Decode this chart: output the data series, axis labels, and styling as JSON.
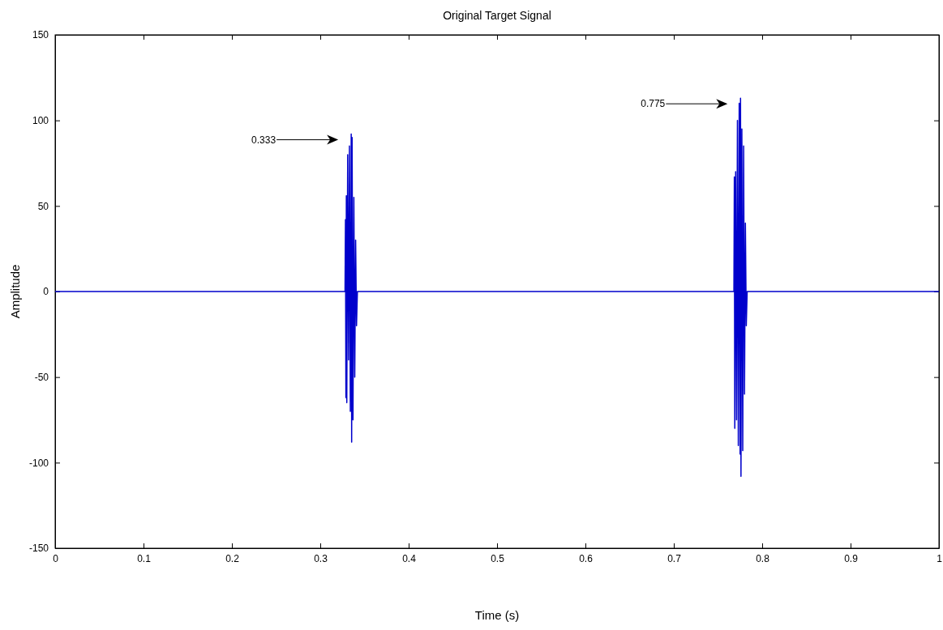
{
  "chart_data": {
    "type": "line",
    "title": "Original Target Signal",
    "xlabel": "Time (s)",
    "ylabel": "Amplitude",
    "xlim": [
      0,
      1
    ],
    "xticks": [
      0,
      0.1,
      0.2,
      0.3,
      0.4,
      0.5,
      0.6,
      0.7,
      0.8,
      0.9,
      1
    ],
    "ylim": [
      -150,
      150
    ],
    "yticks": [
      -150,
      -100,
      -50,
      0,
      50,
      100,
      150
    ],
    "grid": false,
    "marker": "none",
    "line_style": "solid",
    "annotations": [
      "0.333",
      "0.775"
    ],
    "series": [
      {
        "color": "#0000cc",
        "x": [
          0,
          0.328,
          0.3285,
          0.329,
          0.3295,
          0.33,
          0.331,
          0.332,
          0.333,
          0.334,
          0.335,
          0.3355,
          0.336,
          0.337,
          0.338,
          0.339,
          0.34,
          0.341,
          0.342,
          0.768,
          0.7685,
          0.769,
          0.77,
          0.771,
          0.772,
          0.773,
          0.774,
          0.775,
          0.7755,
          0.776,
          0.777,
          0.778,
          0.779,
          0.78,
          0.781,
          0.782,
          0.783,
          1
        ],
        "values": [
          0,
          0,
          42,
          -62,
          56,
          -65,
          80,
          -40,
          85,
          -70,
          92,
          -88,
          90,
          -75,
          55,
          -50,
          30,
          -20,
          0,
          0,
          67,
          -80,
          70,
          -75,
          100,
          -90,
          110,
          -95,
          113,
          -108,
          95,
          -93,
          85,
          -60,
          40,
          -20,
          0,
          0
        ]
      }
    ]
  }
}
